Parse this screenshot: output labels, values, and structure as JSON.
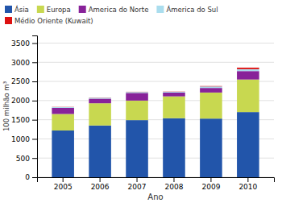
{
  "chart_data": {
    "type": "bar",
    "stacked": true,
    "xlabel": "Ano",
    "ylabel": "100 milhão m³",
    "categories": [
      "2005",
      "2006",
      "2007",
      "2008",
      "2009",
      "2010"
    ],
    "series": [
      {
        "name": "Ásia",
        "color": "#2255aa",
        "values": [
          1220,
          1350,
          1490,
          1540,
          1530,
          1700
        ]
      },
      {
        "name": "Europa",
        "color": "#c8d850",
        "values": [
          430,
          580,
          510,
          570,
          680,
          850
        ]
      },
      {
        "name": "America do Norte",
        "color": "#882299",
        "values": [
          160,
          120,
          200,
          100,
          120,
          220
        ]
      },
      {
        "name": "Ámerica do Sul",
        "color": "#aaddee",
        "values": [
          20,
          25,
          25,
          20,
          40,
          50
        ]
      },
      {
        "name": "Médio Oriente (Kuwait)",
        "color": "#dd1111",
        "values": [
          5,
          5,
          5,
          5,
          10,
          40
        ]
      }
    ],
    "ylim": [
      0,
      3700
    ],
    "yticks": [
      0,
      500,
      1000,
      1500,
      2000,
      2500,
      3000,
      3500
    ],
    "grid": true,
    "legend": "top"
  }
}
